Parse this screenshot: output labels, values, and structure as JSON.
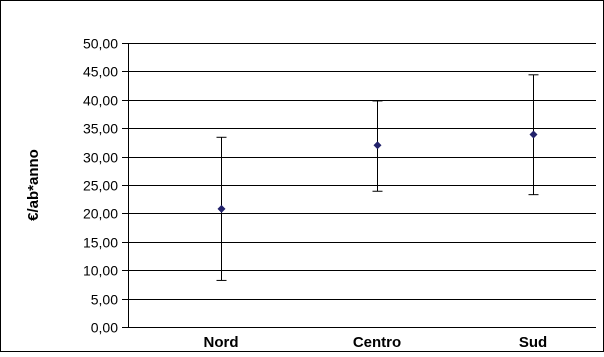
{
  "chart_data": {
    "type": "scatter",
    "title": "",
    "xlabel": "",
    "ylabel": "€/ab*anno",
    "categories": [
      "Nord",
      "Centro",
      "Sud"
    ],
    "series": [
      {
        "values": [
          20.8,
          32.0,
          33.9
        ],
        "error_low": [
          8.2,
          23.9,
          23.3
        ],
        "error_high": [
          33.4,
          39.8,
          44.4
        ]
      }
    ],
    "ylim": [
      0,
      50
    ],
    "y_ticks": [
      "0,00",
      "5,00",
      "10,00",
      "15,00",
      "20,00",
      "25,00",
      "30,00",
      "35,00",
      "40,00",
      "45,00",
      "50,00"
    ],
    "grid": true,
    "legend": "none",
    "colors": {
      "marker": "#22226b",
      "error_bar": "#000000",
      "grid": "#000000",
      "frame": "#000000"
    }
  }
}
